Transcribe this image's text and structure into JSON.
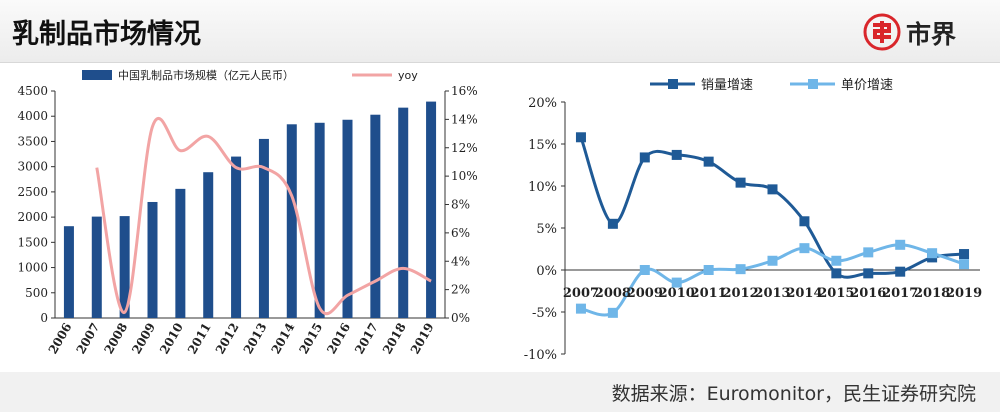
{
  "header": {
    "title": "乳制品市场情况",
    "brand_name": "市界",
    "brand_color": "#d9262b"
  },
  "footer": {
    "source": "数据来源：Euromonitor，民生证券研究院"
  },
  "colors": {
    "bar": "#1f4e8c",
    "yoy": "#f2a4a4",
    "volume": "#1f5a96",
    "price": "#6fb6e8"
  },
  "chart_data": [
    {
      "type": "bar",
      "categories": [
        "2006",
        "2007",
        "2008",
        "2009",
        "2010",
        "2011",
        "2012",
        "2013",
        "2014",
        "2015",
        "2016",
        "2017",
        "2018",
        "2019"
      ],
      "series": [
        {
          "name": "中国乳制品市场规模（亿元人民币）",
          "axis": "left",
          "type": "bar",
          "values": [
            1820,
            2010,
            2020,
            2300,
            2560,
            2890,
            3200,
            3550,
            3840,
            3870,
            3930,
            4030,
            4170,
            4290
          ]
        },
        {
          "name": "yoy",
          "axis": "right",
          "type": "line",
          "x": [
            "2007",
            "2008",
            "2009",
            "2010",
            "2011",
            "2012",
            "2013",
            "2014",
            "2015",
            "2016",
            "2017",
            "2018",
            "2019"
          ],
          "values": [
            10.6,
            0.4,
            13.5,
            11.8,
            12.8,
            10.6,
            10.6,
            8.6,
            0.7,
            1.6,
            2.6,
            3.5,
            2.6
          ]
        }
      ],
      "ylim": [
        0,
        4500
      ],
      "yticks": [
        "0",
        "500",
        "1000",
        "1500",
        "2000",
        "2500",
        "3000",
        "3500",
        "4000",
        "4500"
      ],
      "y2lim": [
        0,
        16
      ],
      "y2ticks": [
        "0%",
        "2%",
        "4%",
        "6%",
        "8%",
        "10%",
        "12%",
        "14%",
        "16%"
      ],
      "legend": "top"
    },
    {
      "type": "line",
      "categories": [
        "2007",
        "2008",
        "2009",
        "2010",
        "2011",
        "2012",
        "2013",
        "2014",
        "2015",
        "2016",
        "2017",
        "2018",
        "2019"
      ],
      "series": [
        {
          "name": "销量增速",
          "values": [
            15.8,
            5.5,
            13.4,
            13.7,
            12.9,
            10.4,
            9.6,
            5.8,
            -0.4,
            -0.4,
            -0.2,
            1.5,
            1.9
          ]
        },
        {
          "name": "单价增速",
          "values": [
            -4.6,
            -5.1,
            0.0,
            -1.5,
            0.0,
            0.1,
            1.1,
            2.6,
            1.1,
            2.1,
            3.0,
            2.0,
            0.7
          ]
        }
      ],
      "ylim": [
        -10,
        20
      ],
      "yticks": [
        "-10%",
        "-5%",
        "0%",
        "5%",
        "10%",
        "15%",
        "20%"
      ],
      "legend": "top"
    }
  ]
}
